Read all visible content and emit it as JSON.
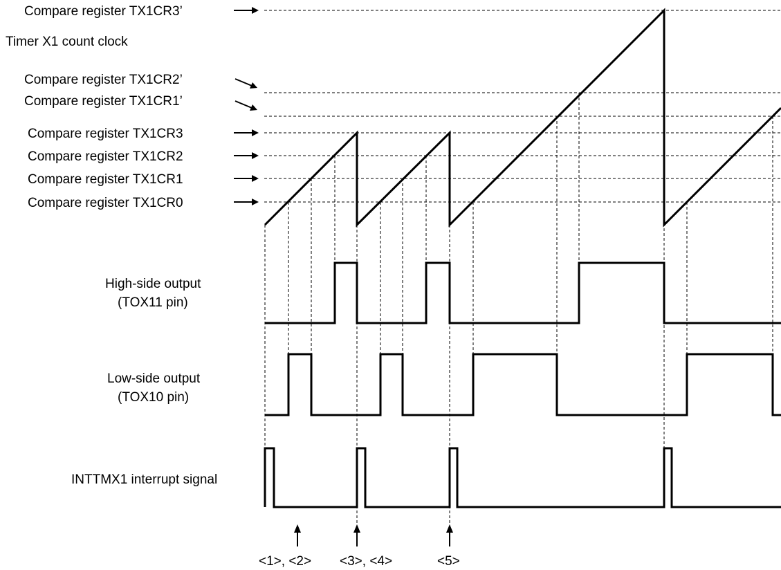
{
  "registers": {
    "tx1cr3_prime": "Compare register TX1CR3’",
    "count_clock": "Timer X1 count clock",
    "tx1cr2_prime": "Compare register TX1CR2’",
    "tx1cr1_prime": "Compare register TX1CR1’",
    "tx1cr3": "Compare register TX1CR3",
    "tx1cr2": "Compare register TX1CR2",
    "tx1cr1": "Compare register TX1CR1",
    "tx1cr0": "Compare register TX1CR0"
  },
  "signals": {
    "high_side_line1": "High-side output",
    "high_side_line2": "(TOX11 pin)",
    "low_side_line1": "Low-side output",
    "low_side_line2": "(TOX10 pin)",
    "interrupt": "INTTMX1 interrupt signal"
  },
  "annotations": {
    "a12": "<1>, <2>",
    "a34": "<3>, <4>",
    "a5": "<5>"
  },
  "colors": {
    "line": "#000000",
    "background": "#ffffff"
  }
}
